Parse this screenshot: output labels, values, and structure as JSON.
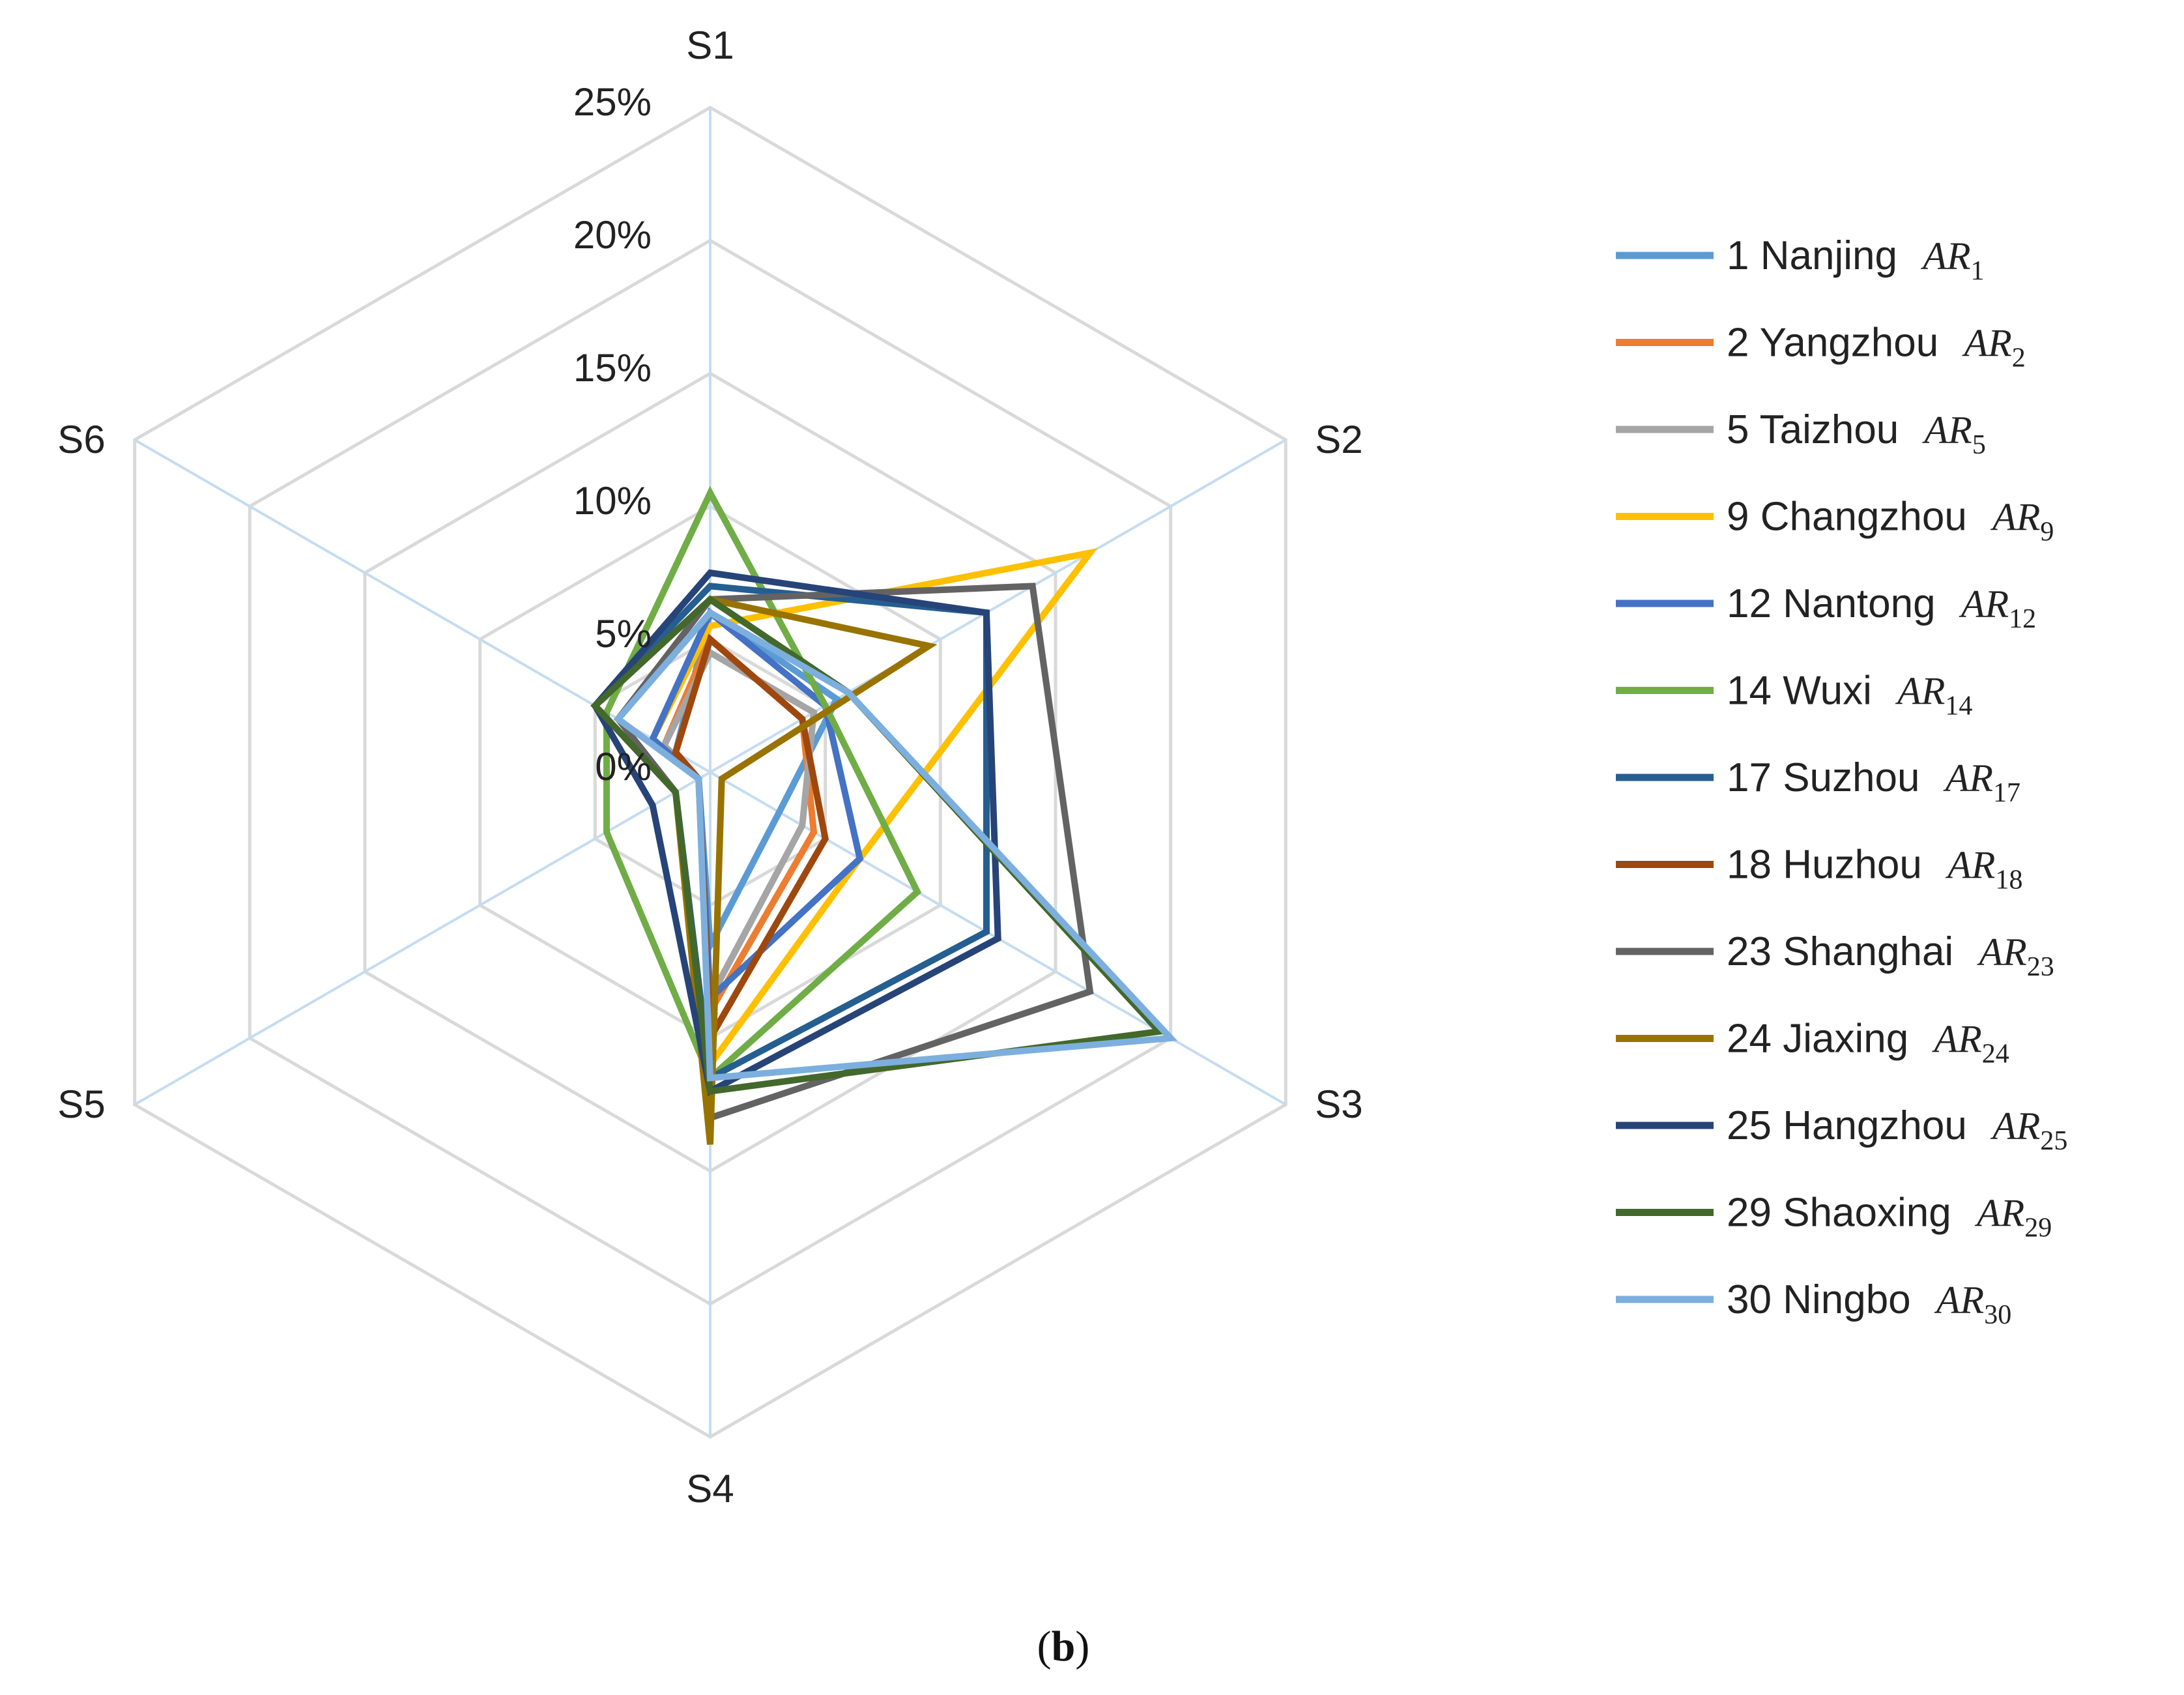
{
  "chart_data": {
    "type": "radar",
    "axes": [
      "S1",
      "S2",
      "S3",
      "S4",
      "S5",
      "S6"
    ],
    "rlim": [
      0,
      25
    ],
    "ticks": [
      "0%",
      "5%",
      "10%",
      "15%",
      "20%",
      "25%"
    ],
    "grid": true,
    "legend_position": "right",
    "caption_open": "(",
    "caption_letter": "b",
    "caption_close": ")",
    "series": [
      {
        "name": "1 Nanjing",
        "symbol": "AR",
        "subscript": "1",
        "color": "#5b9bd5",
        "values": [
          6.0,
          5.5,
          3.0,
          6.5,
          0.5,
          1.5
        ]
      },
      {
        "name": "2 Yangzhou",
        "symbol": "AR",
        "subscript": "2",
        "color": "#ed7d31",
        "values": [
          5.0,
          4.0,
          4.5,
          9.0,
          0.5,
          2.0
        ]
      },
      {
        "name": "5 Taizhou",
        "symbol": "AR",
        "subscript": "5",
        "color": "#a5a5a5",
        "values": [
          4.5,
          4.5,
          4.0,
          8.5,
          0.5,
          2.0
        ]
      },
      {
        "name": "9 Changzhou",
        "symbol": "AR",
        "subscript": "9",
        "color": "#ffc000",
        "values": [
          5.5,
          16.5,
          6.5,
          11.0,
          0.5,
          2.5
        ]
      },
      {
        "name": "12 Nantong",
        "symbol": "AR",
        "subscript": "12",
        "color": "#4472c4",
        "values": [
          6.0,
          5.0,
          6.5,
          8.5,
          0.5,
          2.5
        ]
      },
      {
        "name": "14 Wuxi",
        "symbol": "AR",
        "subscript": "14",
        "color": "#70ad47",
        "values": [
          10.5,
          5.0,
          9.0,
          11.5,
          4.5,
          4.5
        ]
      },
      {
        "name": "17 Suzhou",
        "symbol": "AR",
        "subscript": "17",
        "color": "#255e91",
        "values": [
          7.0,
          12.0,
          12.0,
          11.5,
          1.5,
          5.0
        ]
      },
      {
        "name": "18 Huzhou",
        "symbol": "AR",
        "subscript": "18",
        "color": "#9e480e",
        "values": [
          5.0,
          4.0,
          5.0,
          10.0,
          0.5,
          1.5
        ]
      },
      {
        "name": "23 Shanghai",
        "symbol": "AR",
        "subscript": "23",
        "color": "#636363",
        "values": [
          6.5,
          14.0,
          16.5,
          13.0,
          1.5,
          4.0
        ]
      },
      {
        "name": "24 Jiaxing",
        "symbol": "AR",
        "subscript": "24",
        "color": "#997300",
        "values": [
          6.5,
          9.5,
          0.5,
          14.0,
          1.5,
          5.0
        ]
      },
      {
        "name": "25 Hangzhou",
        "symbol": "AR",
        "subscript": "25",
        "color": "#264478",
        "values": [
          7.5,
          12.0,
          12.5,
          12.0,
          2.5,
          5.0
        ]
      },
      {
        "name": "29 Shaoxing",
        "symbol": "AR",
        "subscript": "29",
        "color": "#43682b",
        "values": [
          6.5,
          6.0,
          19.5,
          12.0,
          1.5,
          5.0
        ]
      },
      {
        "name": "30 Ningbo",
        "symbol": "AR",
        "subscript": "30",
        "color": "#7cafdd",
        "values": [
          6.0,
          6.0,
          20.0,
          11.5,
          0.5,
          4.0
        ]
      }
    ]
  }
}
